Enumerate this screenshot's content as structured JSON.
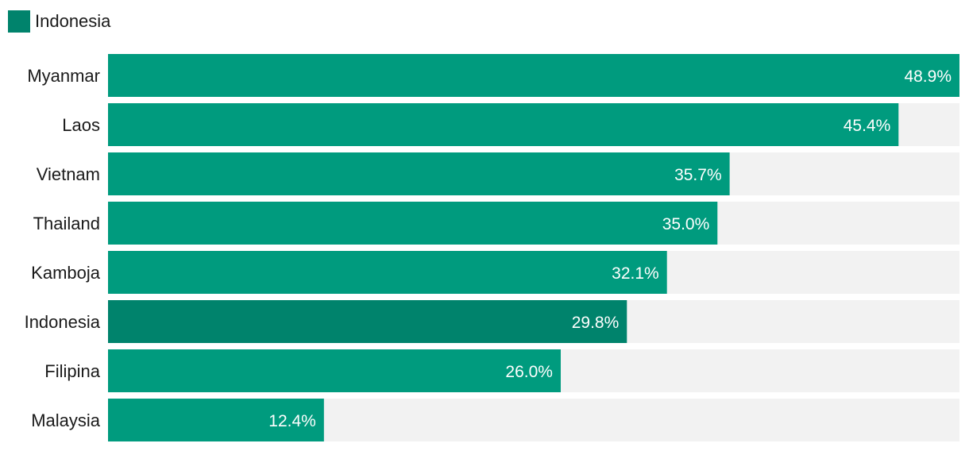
{
  "legend": {
    "label": "Indonesia",
    "color": "#00836c"
  },
  "colors": {
    "bar": "#009b7e",
    "highlight": "#00836c",
    "track": "#f2f2f2",
    "value_text": "#ffffff"
  },
  "chart_data": {
    "type": "bar",
    "orientation": "horizontal",
    "title": "",
    "xlabel": "",
    "ylabel": "",
    "xlim": [
      0,
      48.9
    ],
    "grid": false,
    "legend_position": "top-left",
    "highlight_category": "Indonesia",
    "categories": [
      "Myanmar",
      "Laos",
      "Vietnam",
      "Thailand",
      "Kamboja",
      "Indonesia",
      "Filipina",
      "Malaysia"
    ],
    "values": [
      48.9,
      45.4,
      35.7,
      35.0,
      32.1,
      29.8,
      26.0,
      12.4
    ],
    "value_labels": [
      "48.9%",
      "45.4%",
      "35.7%",
      "35.0%",
      "32.1%",
      "29.8%",
      "26.0%",
      "12.4%"
    ]
  }
}
